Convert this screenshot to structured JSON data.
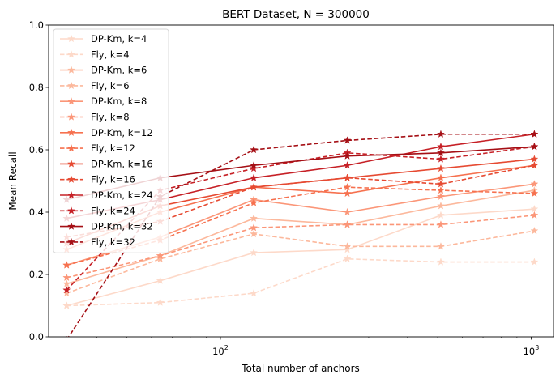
{
  "chart_data": {
    "type": "line",
    "title": "BERT Dataset, N = 300000",
    "xlabel": "Total number of anchors",
    "ylabel": "Mean Recall",
    "xscale": "log",
    "xlim": [
      28,
      1180
    ],
    "ylim": [
      0,
      1
    ],
    "yticks": [
      "0.0",
      "0.2",
      "0.4",
      "0.6",
      "0.8",
      "1.0"
    ],
    "xticks": [
      {
        "value": 100,
        "base": "10",
        "exp": "2"
      },
      {
        "value": 1000,
        "base": "10",
        "exp": "3"
      }
    ],
    "grid": false,
    "legend_position": "top-left",
    "x": [
      32,
      64,
      128,
      256,
      512,
      1024
    ],
    "series": [
      {
        "name": "DP-Km, k=4",
        "color": "#fdd9c9",
        "dash": "solid",
        "values": [
          0.1,
          0.18,
          0.27,
          0.28,
          0.39,
          0.41
        ]
      },
      {
        "name": "Fly, k=4",
        "color": "#fdd9c9",
        "dash": "dashed",
        "values": [
          0.1,
          0.11,
          0.14,
          0.25,
          0.24,
          0.24
        ]
      },
      {
        "name": "DP-Km, k=6",
        "color": "#fcb89c",
        "dash": "solid",
        "values": [
          0.17,
          0.26,
          0.38,
          0.36,
          0.42,
          0.47
        ]
      },
      {
        "name": "Fly, k=6",
        "color": "#fcb89c",
        "dash": "dashed",
        "values": [
          0.14,
          0.25,
          0.33,
          0.29,
          0.29,
          0.34
        ]
      },
      {
        "name": "DP-Km, k=8",
        "color": "#fb9678",
        "dash": "solid",
        "values": [
          0.23,
          0.32,
          0.44,
          0.4,
          0.45,
          0.49
        ]
      },
      {
        "name": "Fly, k=8",
        "color": "#fb9678",
        "dash": "dashed",
        "values": [
          0.19,
          0.26,
          0.35,
          0.36,
          0.36,
          0.39
        ]
      },
      {
        "name": "DP-Km, k=12",
        "color": "#f6714f",
        "dash": "solid",
        "values": [
          0.28,
          0.4,
          0.48,
          0.46,
          0.51,
          0.55
        ]
      },
      {
        "name": "Fly, k=12",
        "color": "#f6714f",
        "dash": "dashed",
        "values": [
          0.23,
          0.31,
          0.43,
          0.48,
          0.47,
          0.46
        ]
      },
      {
        "name": "DP-Km, k=16",
        "color": "#e64a32",
        "dash": "solid",
        "values": [
          0.3,
          0.42,
          0.48,
          0.51,
          0.54,
          0.57
        ]
      },
      {
        "name": "Fly, k=16",
        "color": "#e64a32",
        "dash": "dashed",
        "values": [
          0.32,
          0.37,
          0.48,
          0.51,
          0.49,
          0.55
        ]
      },
      {
        "name": "DP-Km, k=24",
        "color": "#c62026",
        "dash": "solid",
        "values": [
          0.38,
          0.44,
          0.51,
          0.55,
          0.61,
          0.65
        ]
      },
      {
        "name": "Fly, k=24",
        "color": "#c62026",
        "dash": "dashed",
        "values": [
          0.15,
          0.47,
          0.54,
          0.59,
          0.57,
          0.61
        ]
      },
      {
        "name": "DP-Km, k=32",
        "color": "#a50f15",
        "dash": "solid",
        "values": [
          0.44,
          0.51,
          0.55,
          0.58,
          0.59,
          0.61
        ]
      },
      {
        "name": "Fly, k=32",
        "color": "#a50f15",
        "dash": "dashed",
        "values": [
          -0.01,
          0.45,
          0.6,
          0.63,
          0.65,
          0.65
        ]
      }
    ]
  }
}
